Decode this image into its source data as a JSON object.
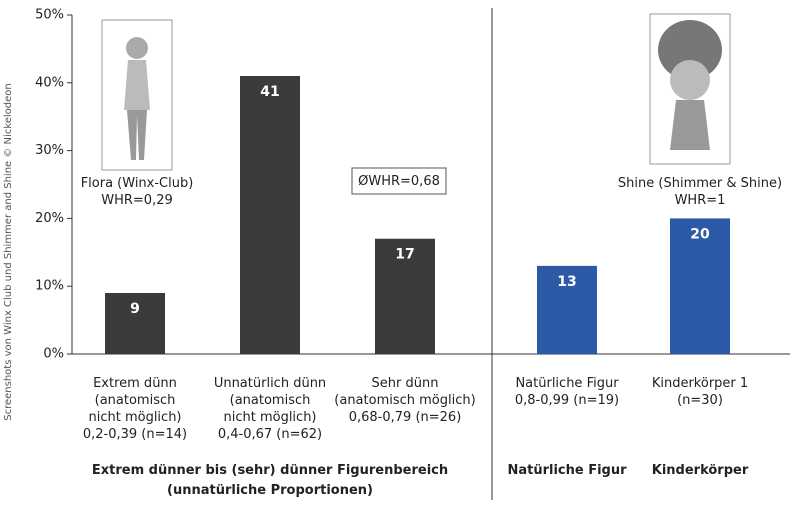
{
  "chart_data": {
    "type": "bar",
    "categories": [
      "Extrem dünn\n(anatomisch\nnicht möglich)\n0,2-0,39 (n=14)",
      "Unnatürlich dünn\n(anatomisch\nnicht möglich)\n0,4-0,67 (n=62)",
      "Sehr dünn\n(anatomisch möglich)\n0,68-0,79 (n=26)",
      "Natürliche Figur\n0,8-0,99 (n=19)",
      "Kinderkörper 1\n(n=30)"
    ],
    "values": [
      9,
      41,
      17,
      13,
      20
    ],
    "colors": [
      "#3b3b3d",
      "#3b3b3d",
      "#3b3b3d",
      "#2d5aa6",
      "#2d5aa6"
    ],
    "ylim": [
      0,
      50
    ],
    "yticks": [
      {
        "value": 0,
        "label": "0%"
      },
      {
        "value": 10,
        "label": "10%"
      },
      {
        "value": 20,
        "label": "20%"
      },
      {
        "value": 30,
        "label": "30%"
      },
      {
        "value": 40,
        "label": "40%"
      },
      {
        "value": 50,
        "label": "50%"
      }
    ],
    "groups": [
      "Extrem dünner bis (sehr) dünner Figurenbereich\n(unnatürliche Proportionen)",
      "Natürliche Figur",
      "Kinderkörper"
    ],
    "annotations": [
      "Flora (Winx-Club)\nWHR=0,29",
      "ØWHR=0,68",
      "Shine (Shimmer & Shine)\nWHR=1"
    ],
    "credit": "Screenshots von Winx Club und Shimmer and Shine © Nickelodeon"
  }
}
